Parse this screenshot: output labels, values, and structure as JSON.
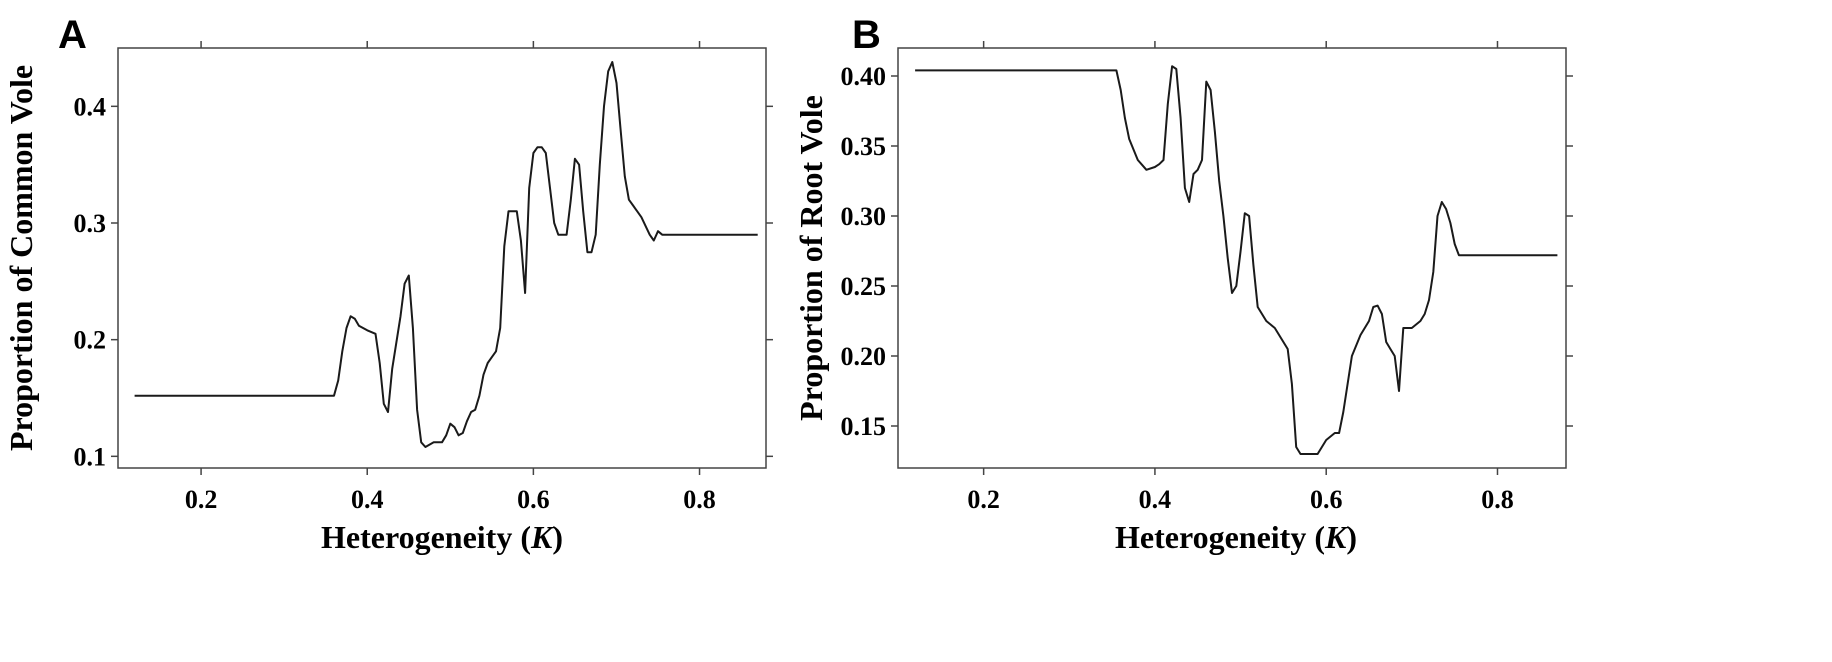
{
  "chart_data": [
    {
      "type": "line",
      "panel_label": "A",
      "xlabel_main": "Heterogeneity (",
      "xlabel_var": "K",
      "xlabel_end": ")",
      "ylabel": "Proportion of Common Vole",
      "xlim": [
        0.1,
        0.88
      ],
      "ylim": [
        0.09,
        0.45
      ],
      "x_ticks": [
        0.2,
        0.4,
        0.6,
        0.8
      ],
      "x_tick_labels": [
        "0.2",
        "0.4",
        "0.6",
        "0.8"
      ],
      "y_ticks": [
        0.1,
        0.2,
        0.3,
        0.4
      ],
      "y_tick_labels": [
        "0.1",
        "0.2",
        "0.3",
        "0.4"
      ],
      "grid": false,
      "series": [
        {
          "x": [
            0.12,
            0.36,
            0.365,
            0.37,
            0.375,
            0.38,
            0.385,
            0.39,
            0.4,
            0.41,
            0.415,
            0.42,
            0.425,
            0.43,
            0.44,
            0.445,
            0.45,
            0.455,
            0.46,
            0.465,
            0.47,
            0.48,
            0.49,
            0.495,
            0.5,
            0.505,
            0.51,
            0.515,
            0.52,
            0.525,
            0.53,
            0.535,
            0.54,
            0.545,
            0.55,
            0.555,
            0.56,
            0.565,
            0.57,
            0.575,
            0.58,
            0.585,
            0.59,
            0.595,
            0.6,
            0.605,
            0.61,
            0.615,
            0.62,
            0.625,
            0.63,
            0.635,
            0.64,
            0.645,
            0.65,
            0.655,
            0.66,
            0.665,
            0.67,
            0.675,
            0.68,
            0.685,
            0.69,
            0.695,
            0.7,
            0.705,
            0.71,
            0.715,
            0.72,
            0.73,
            0.74,
            0.745,
            0.75,
            0.755,
            0.87
          ],
          "y": [
            0.152,
            0.152,
            0.165,
            0.19,
            0.21,
            0.22,
            0.218,
            0.212,
            0.208,
            0.205,
            0.18,
            0.145,
            0.138,
            0.175,
            0.22,
            0.248,
            0.255,
            0.21,
            0.14,
            0.112,
            0.108,
            0.112,
            0.112,
            0.118,
            0.128,
            0.125,
            0.118,
            0.12,
            0.13,
            0.138,
            0.14,
            0.152,
            0.17,
            0.18,
            0.185,
            0.19,
            0.21,
            0.28,
            0.31,
            0.31,
            0.31,
            0.285,
            0.24,
            0.33,
            0.36,
            0.365,
            0.365,
            0.36,
            0.33,
            0.3,
            0.29,
            0.29,
            0.29,
            0.32,
            0.355,
            0.35,
            0.31,
            0.275,
            0.275,
            0.29,
            0.35,
            0.4,
            0.43,
            0.438,
            0.42,
            0.38,
            0.34,
            0.32,
            0.315,
            0.305,
            0.29,
            0.285,
            0.293,
            0.29,
            0.29
          ]
        }
      ]
    },
    {
      "type": "line",
      "panel_label": "B",
      "xlabel_main": "Heterogeneity (",
      "xlabel_var": "K",
      "xlabel_end": ")",
      "ylabel": "Proportion of Root Vole",
      "xlim": [
        0.1,
        0.88
      ],
      "ylim": [
        0.12,
        0.42
      ],
      "x_ticks": [
        0.2,
        0.4,
        0.6,
        0.8
      ],
      "x_tick_labels": [
        "0.2",
        "0.4",
        "0.6",
        "0.8"
      ],
      "y_ticks": [
        0.15,
        0.2,
        0.25,
        0.3,
        0.35,
        0.4
      ],
      "y_tick_labels": [
        "0.15",
        "0.20",
        "0.25",
        "0.30",
        "0.35",
        "0.40"
      ],
      "grid": false,
      "series": [
        {
          "x": [
            0.12,
            0.355,
            0.36,
            0.365,
            0.37,
            0.38,
            0.39,
            0.4,
            0.405,
            0.41,
            0.415,
            0.42,
            0.425,
            0.43,
            0.435,
            0.44,
            0.445,
            0.45,
            0.455,
            0.46,
            0.465,
            0.47,
            0.475,
            0.48,
            0.485,
            0.49,
            0.495,
            0.5,
            0.505,
            0.51,
            0.515,
            0.52,
            0.53,
            0.54,
            0.55,
            0.555,
            0.56,
            0.565,
            0.57,
            0.575,
            0.58,
            0.585,
            0.59,
            0.6,
            0.61,
            0.615,
            0.62,
            0.63,
            0.64,
            0.65,
            0.655,
            0.66,
            0.665,
            0.67,
            0.675,
            0.68,
            0.685,
            0.69,
            0.7,
            0.71,
            0.715,
            0.72,
            0.725,
            0.73,
            0.735,
            0.74,
            0.745,
            0.75,
            0.755,
            0.87
          ],
          "y": [
            0.404,
            0.404,
            0.39,
            0.37,
            0.355,
            0.34,
            0.333,
            0.335,
            0.337,
            0.34,
            0.38,
            0.407,
            0.405,
            0.37,
            0.32,
            0.31,
            0.33,
            0.333,
            0.34,
            0.396,
            0.39,
            0.36,
            0.325,
            0.3,
            0.27,
            0.245,
            0.25,
            0.275,
            0.302,
            0.3,
            0.265,
            0.235,
            0.225,
            0.22,
            0.21,
            0.205,
            0.18,
            0.135,
            0.13,
            0.13,
            0.13,
            0.13,
            0.13,
            0.14,
            0.145,
            0.145,
            0.16,
            0.2,
            0.215,
            0.225,
            0.235,
            0.236,
            0.23,
            0.21,
            0.205,
            0.2,
            0.175,
            0.22,
            0.22,
            0.225,
            0.23,
            0.24,
            0.26,
            0.3,
            0.31,
            0.305,
            0.295,
            0.28,
            0.272,
            0.272
          ]
        }
      ]
    }
  ]
}
